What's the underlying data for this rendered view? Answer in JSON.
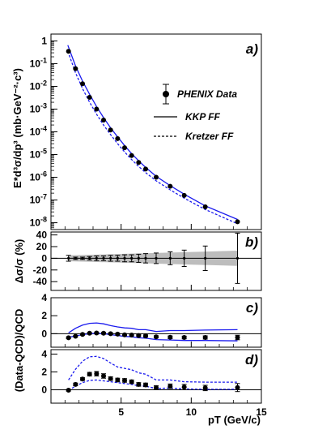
{
  "chart_data": [
    {
      "panel": "a",
      "type": "scatter",
      "panel_label": "a)",
      "ylabel": "E*d³σ/dp³ (mb·GeV⁻²·c³)",
      "yscale": "log",
      "ylim": [
        5e-09,
        2
      ],
      "xlim": [
        0,
        15
      ],
      "y_ticks": [
        {
          "v": 1,
          "label": "1"
        },
        {
          "v": 0.1,
          "label": "10-1"
        },
        {
          "v": 0.01,
          "label": "10-2"
        },
        {
          "v": 0.001,
          "label": "10-3"
        },
        {
          "v": 0.0001,
          "label": "10-4"
        },
        {
          "v": 1e-05,
          "label": "10-5"
        },
        {
          "v": 1e-06,
          "label": "10-6"
        },
        {
          "v": 1e-07,
          "label": "10-7"
        },
        {
          "v": 1e-08,
          "label": "10-8"
        }
      ],
      "legend_position": "right",
      "legend": [
        "PHENIX Data",
        "KKP FF",
        "Kretzer FF"
      ],
      "series": [
        {
          "name": "PHENIX Data",
          "style": "points",
          "x": [
            1.25,
            1.75,
            2.25,
            2.75,
            3.25,
            3.75,
            4.25,
            4.75,
            5.25,
            5.75,
            6.25,
            6.75,
            7.5,
            8.5,
            9.5,
            11.0,
            13.3
          ],
          "y": [
            0.35,
            0.06,
            0.013,
            0.0033,
            0.001,
            0.00033,
            0.00012,
            5e-05,
            2e-05,
            9e-06,
            4.5e-06,
            2.3e-06,
            1e-06,
            4e-07,
            1.6e-07,
            5e-08,
            1.1e-08
          ]
        },
        {
          "name": "KKP FF",
          "style": "solid",
          "x": [
            1.2,
            1.75,
            2.25,
            2.75,
            3.25,
            3.75,
            4.25,
            4.75,
            5.25,
            5.75,
            6.25,
            6.75,
            7.5,
            8.5,
            9.5,
            11.0,
            13.3
          ],
          "y": [
            0.65,
            0.08,
            0.017,
            0.0045,
            0.0013,
            0.00042,
            0.00015,
            6e-05,
            2.5e-05,
            1.1e-05,
            5.3e-06,
            2.7e-06,
            1.1e-06,
            4.3e-07,
            1.8e-07,
            5.5e-08,
            1.4e-08
          ]
        },
        {
          "name": "Kretzer FF",
          "style": "dashed",
          "x": [
            1.2,
            1.75,
            2.25,
            2.75,
            3.25,
            3.75,
            4.25,
            4.75,
            5.25,
            5.75,
            6.25,
            6.75,
            7.5,
            8.5,
            9.5,
            11.0,
            13.3
          ],
          "y": [
            0.35,
            0.04,
            0.008,
            0.002,
            0.0006,
            0.0002,
            7.5e-05,
            3e-05,
            1.3e-05,
            6e-06,
            3e-06,
            1.6e-06,
            7e-07,
            2.8e-07,
            1.2e-07,
            3.8e-08,
            9e-09
          ]
        }
      ]
    },
    {
      "panel": "b",
      "type": "scatter",
      "panel_label": "b)",
      "ylabel": "Δσ/σ (%)",
      "ylim": [
        -55,
        45
      ],
      "xlim": [
        0,
        15
      ],
      "y_ticks": [
        {
          "v": 40,
          "label": "40"
        },
        {
          "v": 20,
          "label": "20"
        },
        {
          "v": 0,
          "label": "0"
        },
        {
          "v": -20,
          "label": "-20"
        },
        {
          "v": -40,
          "label": "-40"
        }
      ],
      "band": {
        "x": [
          1.25,
          13.3
        ],
        "upper": [
          5,
          13
        ],
        "lower": [
          -5,
          -13
        ]
      },
      "points": {
        "x": [
          1.25,
          1.75,
          2.25,
          2.75,
          3.25,
          3.75,
          4.25,
          4.75,
          5.25,
          5.75,
          6.25,
          6.75,
          7.5,
          8.5,
          9.5,
          11.0,
          13.3
        ],
        "y": [
          0,
          0,
          0,
          0,
          0,
          0,
          0,
          0,
          0,
          0,
          0,
          0,
          0,
          0,
          0,
          0,
          0
        ],
        "err": [
          5,
          2,
          2,
          3,
          4,
          4,
          5,
          5,
          6,
          6,
          7,
          8,
          9,
          11,
          14,
          21,
          43
        ]
      }
    },
    {
      "panel": "c",
      "type": "scatter",
      "panel_label": "c)",
      "ylim": [
        -1.5,
        4
      ],
      "xlim": [
        0,
        15
      ],
      "y_ticks": [
        {
          "v": 4,
          "label": "4"
        },
        {
          "v": 2,
          "label": "2"
        },
        {
          "v": 0,
          "label": "0"
        }
      ],
      "points": {
        "x": [
          1.25,
          1.75,
          2.25,
          2.75,
          3.25,
          3.75,
          4.25,
          4.75,
          5.25,
          5.75,
          6.25,
          6.75,
          7.5,
          8.5,
          9.5,
          11.0,
          13.3
        ],
        "y": [
          -0.45,
          -0.28,
          -0.08,
          0.05,
          0.08,
          0.05,
          0.0,
          -0.05,
          -0.12,
          -0.15,
          -0.2,
          -0.25,
          -0.35,
          -0.4,
          -0.42,
          -0.42,
          -0.42
        ],
        "err": [
          0.1,
          0.08,
          0.08,
          0.1,
          0.1,
          0.1,
          0.1,
          0.1,
          0.1,
          0.1,
          0.1,
          0.12,
          0.12,
          0.15,
          0.15,
          0.18,
          0.25
        ]
      },
      "series": [
        {
          "name": "",
          "style": "solid",
          "x": [
            1.25,
            1.75,
            2.25,
            2.75,
            3.25,
            3.75,
            4.25,
            4.75,
            5.25,
            5.75,
            6.25,
            6.75,
            7.5,
            8.5,
            9.5,
            11.0,
            13.3
          ],
          "y": [
            0.1,
            0.6,
            0.95,
            1.15,
            1.2,
            1.1,
            0.9,
            0.75,
            0.65,
            0.6,
            0.45,
            0.45,
            0.25,
            0.35,
            0.35,
            0.4,
            0.45
          ]
        },
        {
          "name": "",
          "style": "solid",
          "x": [
            1.25,
            1.75,
            2.25,
            2.75,
            3.25,
            3.75,
            4.25,
            4.75,
            5.25,
            5.75,
            6.25,
            6.75,
            7.5,
            8.5,
            9.5,
            11.0,
            13.3
          ],
          "y": [
            -0.4,
            -0.25,
            -0.1,
            0.0,
            0.05,
            0.0,
            -0.1,
            -0.2,
            -0.3,
            -0.35,
            -0.45,
            -0.5,
            -0.65,
            -0.7,
            -0.75,
            -0.75,
            -0.8
          ]
        }
      ]
    },
    {
      "panel": "d",
      "type": "scatter",
      "panel_label": "d)",
      "ylim": [
        -1.5,
        4.5
      ],
      "xlim": [
        0,
        15
      ],
      "y_ticks": [
        {
          "v": 4,
          "label": "4"
        },
        {
          "v": 2,
          "label": "2"
        },
        {
          "v": 0,
          "label": "0"
        }
      ],
      "points": {
        "x": [
          1.25,
          1.75,
          2.25,
          2.75,
          3.25,
          3.75,
          4.25,
          4.75,
          5.25,
          5.75,
          6.25,
          6.75,
          7.5,
          8.5,
          9.5,
          11.0,
          13.3
        ],
        "y": [
          -0.05,
          0.6,
          1.2,
          1.75,
          1.8,
          1.55,
          1.25,
          1.1,
          1.05,
          0.9,
          0.6,
          0.55,
          0.25,
          0.4,
          0.3,
          0.2,
          0.25
        ],
        "err": [
          0.1,
          0.15,
          0.15,
          0.2,
          0.25,
          0.25,
          0.2,
          0.2,
          0.2,
          0.2,
          0.2,
          0.2,
          0.2,
          0.25,
          0.3,
          0.3,
          0.45
        ]
      },
      "series": [
        {
          "name": "",
          "style": "dashed",
          "x": [
            1.25,
            1.75,
            2.25,
            2.75,
            3.25,
            3.75,
            4.25,
            4.75,
            5.25,
            5.75,
            6.25,
            6.75,
            7.5,
            8.5,
            9.5,
            11.0,
            13.3
          ],
          "y": [
            1.1,
            2.3,
            3.2,
            3.7,
            3.75,
            3.5,
            3.0,
            2.55,
            2.4,
            2.25,
            1.9,
            1.75,
            1.1,
            1.1,
            0.9,
            0.85,
            0.85
          ]
        },
        {
          "name": "",
          "style": "dashed",
          "x": [
            1.25,
            1.75,
            2.25,
            2.75,
            3.25,
            3.75,
            4.25,
            4.75,
            5.25,
            5.75,
            6.25,
            6.75,
            7.5,
            8.5,
            9.5,
            11.0,
            13.3
          ],
          "y": [
            -0.05,
            0.4,
            0.8,
            1.05,
            1.1,
            1.0,
            0.9,
            0.8,
            0.7,
            0.6,
            0.45,
            0.4,
            0.15,
            0.2,
            0.1,
            0.05,
            0.05
          ]
        }
      ]
    }
  ],
  "shared": {
    "ylabel_cd": "(Data-QCD)/QCD",
    "xlabel": "pT (GeV/c)",
    "x_ticks": [
      {
        "v": 0,
        "label": ""
      },
      {
        "v": 5,
        "label": "5"
      },
      {
        "v": 10,
        "label": "10"
      },
      {
        "v": 15,
        "label": "15"
      }
    ],
    "colors": {
      "theory": "#1a1aee",
      "data": "#000000",
      "band": "#bdbdbd"
    }
  }
}
